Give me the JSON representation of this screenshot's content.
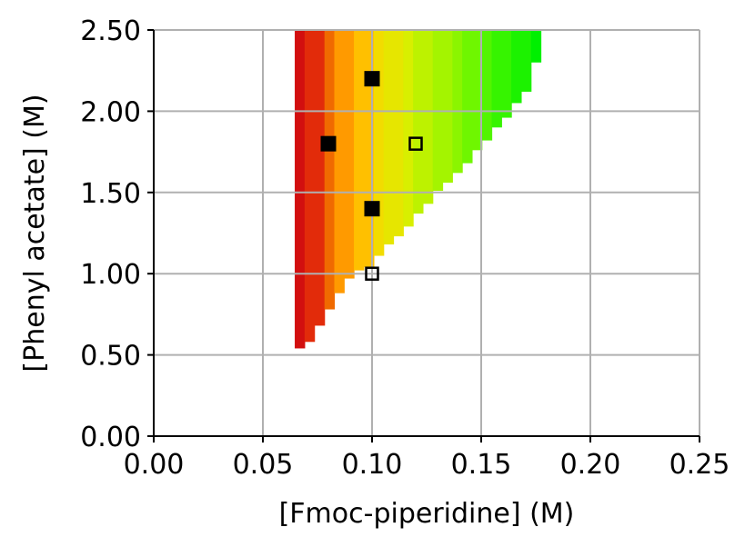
{
  "chart_data": {
    "type": "heatmap",
    "xlabel": "[Fmoc-piperidine] (M)",
    "ylabel": "[Phenyl acetate] (M)",
    "xlim": [
      0.0,
      0.25
    ],
    "ylim": [
      0.0,
      2.5
    ],
    "xticks": [
      "0.00",
      "0.05",
      "0.10",
      "0.15",
      "0.20",
      "0.25"
    ],
    "yticks": [
      "0.00",
      "0.50",
      "1.00",
      "1.50",
      "2.00",
      "2.50"
    ],
    "grid": true,
    "colormap": [
      "#d20f0f",
      "#e22b0a",
      "#f06a00",
      "#ff9a00",
      "#ffc000",
      "#f2dc00",
      "#e6e600",
      "#d8ef00",
      "#bdf200",
      "#a4f400",
      "#8bf500",
      "#6ff600",
      "#52f500",
      "#36f400",
      "#1cf200",
      "#00f000"
    ],
    "heatmap_columns": [
      {
        "x0": 0.0646,
        "x1": 0.0691,
        "y0": 0.54
      },
      {
        "x0": 0.0691,
        "x1": 0.0736,
        "y0": 0.58
      },
      {
        "x0": 0.0736,
        "x1": 0.0782,
        "y0": 0.68
      },
      {
        "x0": 0.0782,
        "x1": 0.0827,
        "y0": 0.78
      },
      {
        "x0": 0.0827,
        "x1": 0.0872,
        "y0": 0.88
      },
      {
        "x0": 0.0872,
        "x1": 0.0917,
        "y0": 0.97
      },
      {
        "x0": 0.0917,
        "x1": 0.0962,
        "y0": 1.02
      },
      {
        "x0": 0.0962,
        "x1": 0.1008,
        "y0": 1.04
      },
      {
        "x0": 0.1008,
        "x1": 0.1053,
        "y0": 1.11
      },
      {
        "x0": 0.1053,
        "x1": 0.1098,
        "y0": 1.18
      },
      {
        "x0": 0.1098,
        "x1": 0.1143,
        "y0": 1.23
      },
      {
        "x0": 0.1143,
        "x1": 0.1188,
        "y0": 1.29
      },
      {
        "x0": 0.1188,
        "x1": 0.1233,
        "y0": 1.37
      },
      {
        "x0": 0.1233,
        "x1": 0.1278,
        "y0": 1.43
      },
      {
        "x0": 0.1278,
        "x1": 0.1323,
        "y0": 1.51
      },
      {
        "x0": 0.1323,
        "x1": 0.1368,
        "y0": 1.56
      },
      {
        "x0": 0.1368,
        "x1": 0.1413,
        "y0": 1.62
      },
      {
        "x0": 0.1413,
        "x1": 0.1458,
        "y0": 1.68
      },
      {
        "x0": 0.1458,
        "x1": 0.1503,
        "y0": 1.76
      },
      {
        "x0": 0.1503,
        "x1": 0.1548,
        "y0": 1.82
      },
      {
        "x0": 0.1548,
        "x1": 0.1593,
        "y0": 1.9
      },
      {
        "x0": 0.1593,
        "x1": 0.1638,
        "y0": 1.96
      },
      {
        "x0": 0.1638,
        "x1": 0.1683,
        "y0": 2.05
      },
      {
        "x0": 0.1683,
        "x1": 0.1728,
        "y0": 2.12
      },
      {
        "x0": 0.1728,
        "x1": 0.1773,
        "y0": 2.3
      }
    ],
    "heatmap_top": 2.5,
    "points": [
      {
        "x": 0.1,
        "y": 2.2,
        "filled": true
      },
      {
        "x": 0.08,
        "y": 1.8,
        "filled": true
      },
      {
        "x": 0.12,
        "y": 1.8,
        "filled": false
      },
      {
        "x": 0.1,
        "y": 1.4,
        "filled": true
      },
      {
        "x": 0.1,
        "y": 1.0,
        "filled": false
      }
    ]
  }
}
